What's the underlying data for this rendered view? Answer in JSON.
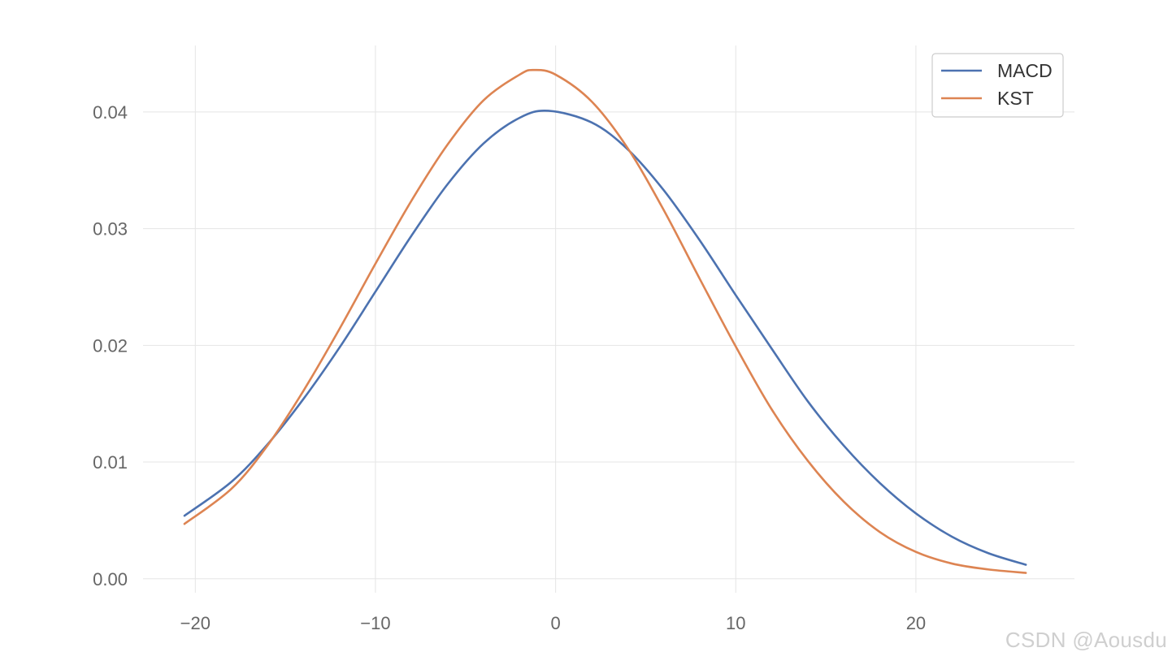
{
  "chart_data": {
    "type": "line",
    "title": "",
    "xlabel": "",
    "ylabel": "",
    "xlim": [
      -22.9,
      28.8
    ],
    "ylim": [
      -0.0012,
      0.0457
    ],
    "xticks": [
      -20,
      -10,
      0,
      10,
      20
    ],
    "xtick_labels": [
      "−20",
      "−10",
      "0",
      "10",
      "20"
    ],
    "yticks": [
      0.0,
      0.01,
      0.02,
      0.03,
      0.04
    ],
    "ytick_labels": [
      "0.00",
      "0.01",
      "0.02",
      "0.03",
      "0.04"
    ],
    "grid": true,
    "legend_position": "top-right",
    "series": [
      {
        "name": "MACD",
        "color": "#4c72b0",
        "x": [
          -20.6,
          -18,
          -16,
          -14,
          -12,
          -10,
          -8,
          -6,
          -4,
          -2,
          -0.4,
          2,
          4,
          6,
          8,
          10,
          12,
          14,
          16,
          18,
          20,
          22,
          24,
          26.1
        ],
        "y": [
          0.0054,
          0.0083,
          0.0115,
          0.0154,
          0.0198,
          0.0246,
          0.0294,
          0.0338,
          0.0373,
          0.0395,
          0.0401,
          0.0391,
          0.0368,
          0.0333,
          0.029,
          0.0243,
          0.0197,
          0.0152,
          0.0114,
          0.0082,
          0.0056,
          0.0036,
          0.0022,
          0.0012
        ]
      },
      {
        "name": "KST",
        "color": "#dd8452",
        "x": [
          -20.6,
          -18,
          -16,
          -14,
          -12,
          -10,
          -8,
          -6,
          -4,
          -2,
          -1.2,
          0,
          2,
          4,
          6,
          8,
          10,
          12,
          14,
          16,
          18,
          20,
          22,
          24,
          26.1
        ],
        "y": [
          0.0047,
          0.0077,
          0.0114,
          0.0161,
          0.0214,
          0.027,
          0.0324,
          0.0372,
          0.041,
          0.0432,
          0.0436,
          0.0432,
          0.0409,
          0.0369,
          0.0316,
          0.0257,
          0.0199,
          0.0145,
          0.0101,
          0.0066,
          0.004,
          0.0023,
          0.0013,
          0.0008,
          0.0005
        ]
      }
    ]
  },
  "watermark": "CSDN @Aousdu"
}
